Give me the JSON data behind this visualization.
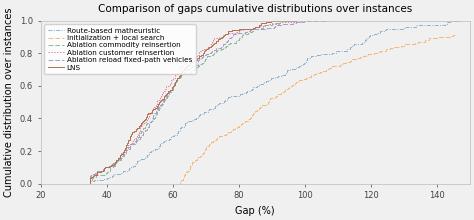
{
  "title": "Comparison of gaps cumulative distributions over instances",
  "xlabel": "Gap (%)",
  "ylabel": "Cumulative distribution over instances",
  "xlim": [
    20,
    150
  ],
  "ylim": [
    0.0,
    1.0
  ],
  "xticks": [
    20,
    40,
    60,
    80,
    100,
    120,
    140
  ],
  "yticks": [
    0.0,
    0.2,
    0.4,
    0.6,
    0.8,
    1.0
  ],
  "series": [
    {
      "label": "Route-based matheuristic",
      "color": "#8eaecb",
      "linestyle": "dashdot",
      "linewidth": 0.7
    },
    {
      "label": "Initialization + local search",
      "color": "#f4b87a",
      "linestyle": "dashed",
      "linewidth": 0.7
    },
    {
      "label": "Ablation commodity reinsertion",
      "color": "#88bb99",
      "linestyle": "dashed",
      "linewidth": 0.7
    },
    {
      "label": "Ablation customer reinsertion",
      "color": "#dd8899",
      "linestyle": "dotted",
      "linewidth": 0.7
    },
    {
      "label": "Ablation reload fixed-path vehicles",
      "color": "#aa99cc",
      "linestyle": "dashed",
      "linewidth": 0.7
    },
    {
      "label": "LNS",
      "color": "#b07050",
      "linestyle": "solid",
      "linewidth": 0.7
    }
  ],
  "background_color": "#f0f0f0",
  "title_fontsize": 7.5,
  "label_fontsize": 7,
  "tick_fontsize": 6,
  "legend_fontsize": 5.2
}
